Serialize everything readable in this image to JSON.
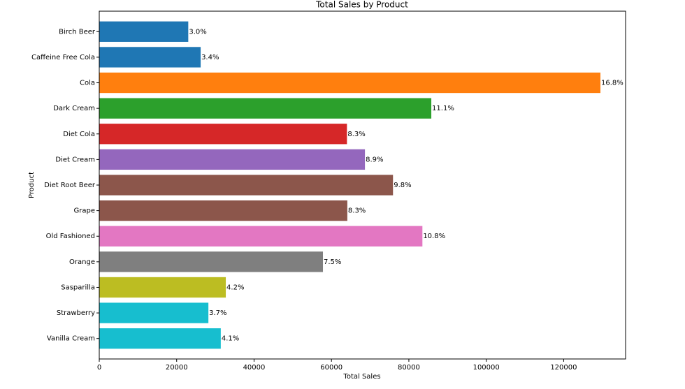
{
  "chart_data": {
    "type": "barh",
    "title": "Total Sales by Product",
    "xlabel": "Total Sales",
    "ylabel": "Product",
    "categories": [
      "Birch Beer",
      "Caffeine Free Cola",
      "Cola",
      "Dark Cream",
      "Diet Cola",
      "Diet Cream",
      "Diet Root Beer",
      "Grape",
      "Old Fashioned",
      "Orange",
      "Sasparilla",
      "Strawberry",
      "Vanilla Cream"
    ],
    "values": [
      23000,
      26200,
      129500,
      85800,
      64000,
      68650,
      75900,
      64100,
      83500,
      57800,
      32700,
      28200,
      31400
    ],
    "value_labels": [
      "3.0%",
      "3.4%",
      "16.8%",
      "11.1%",
      "8.3%",
      "8.9%",
      "9.8%",
      "8.3%",
      "10.8%",
      "7.5%",
      "4.2%",
      "3.7%",
      "4.1%"
    ],
    "colors": [
      "#1f77b4",
      "#1f77b4",
      "#ff7f0e",
      "#2ca02c",
      "#d62728",
      "#9467bd",
      "#8c564b",
      "#8c564b",
      "#e377c2",
      "#7f7f7f",
      "#bcbd22",
      "#17becf",
      "#17becf"
    ],
    "xlim": [
      0,
      136000
    ],
    "xticks": [
      0,
      20000,
      40000,
      60000,
      80000,
      100000,
      120000
    ]
  }
}
